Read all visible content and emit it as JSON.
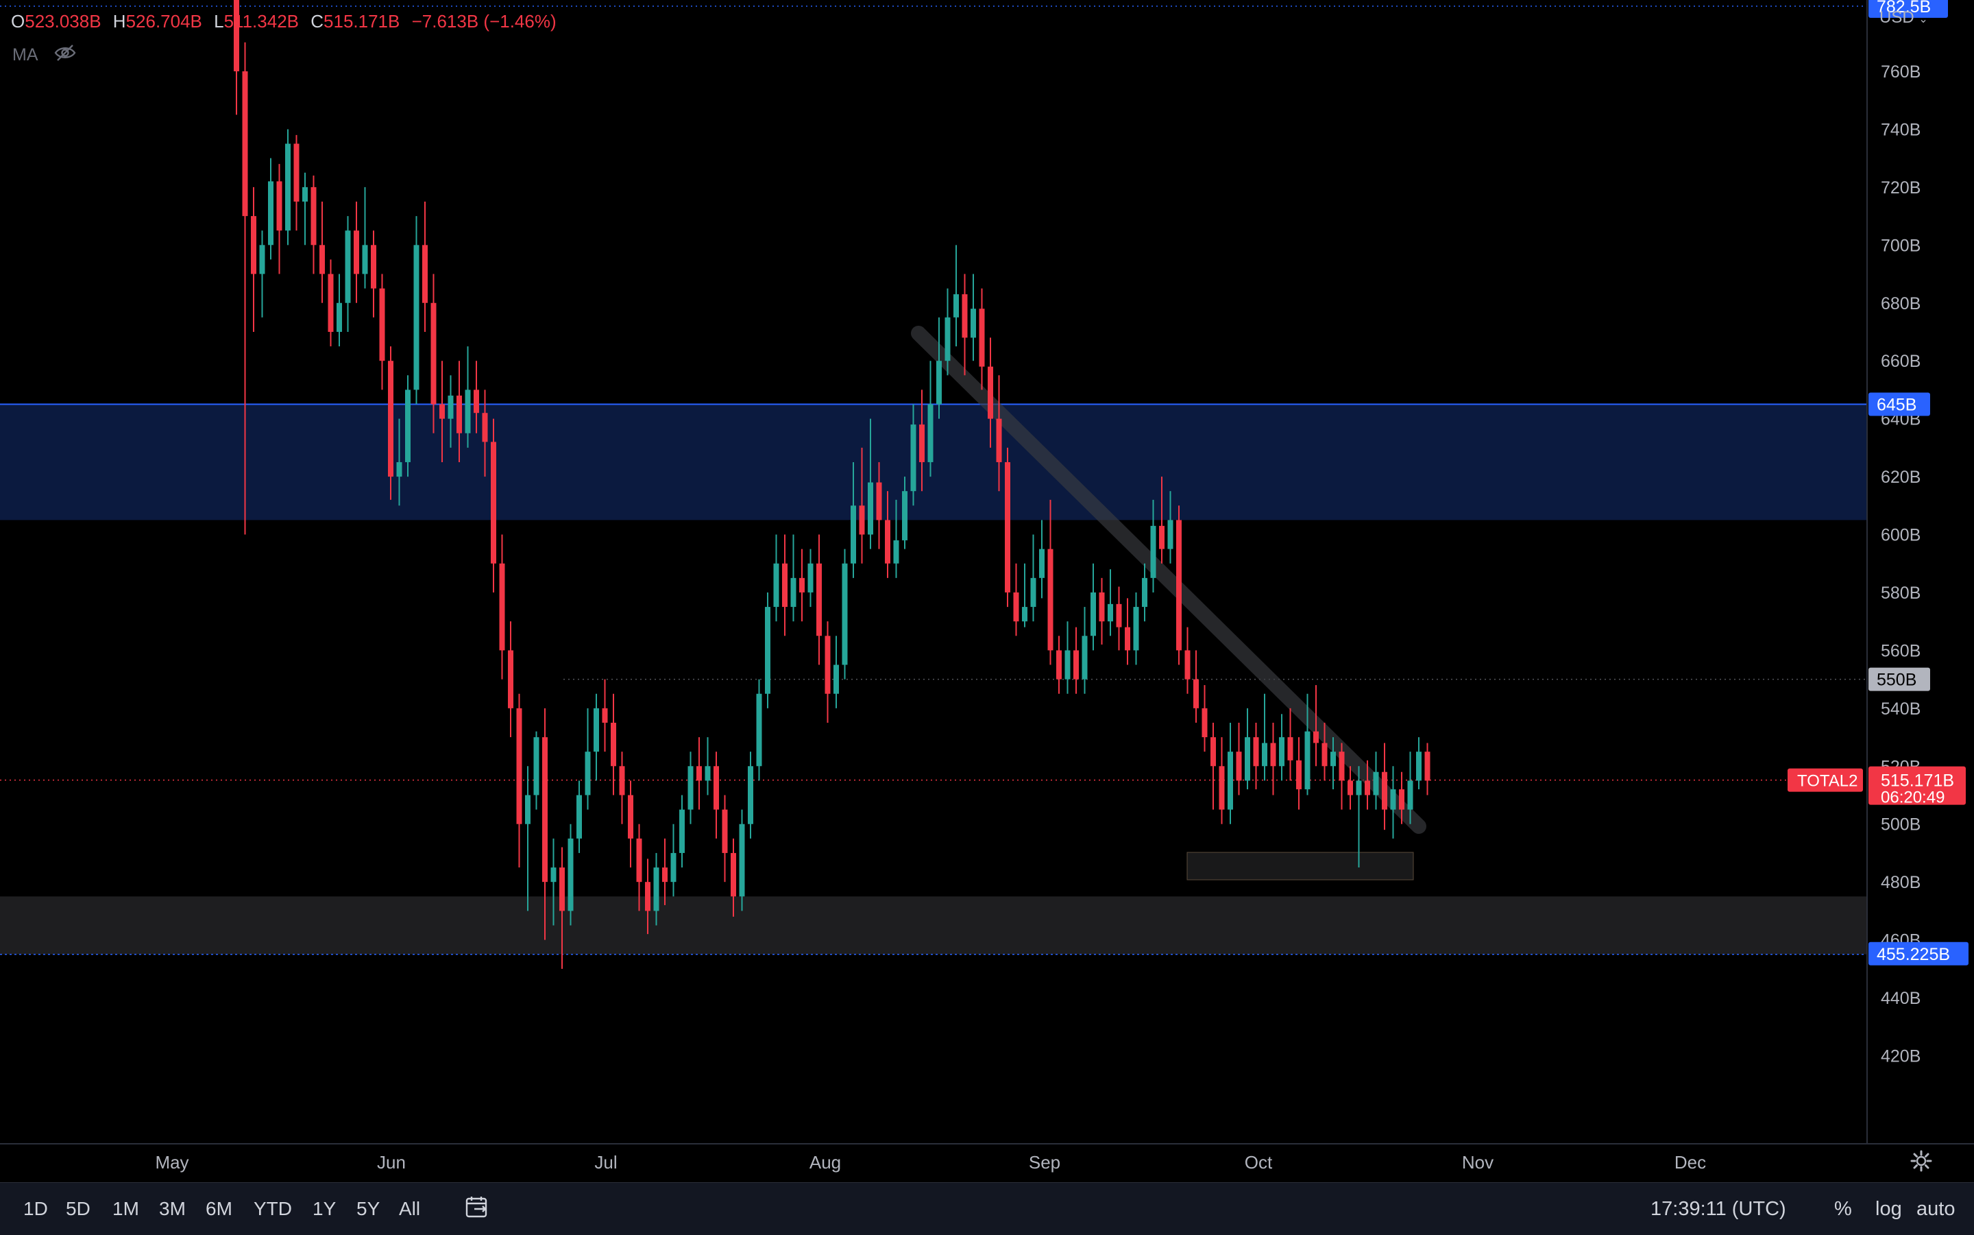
{
  "legend": {
    "o_label": "O",
    "open": "523.038B",
    "h_label": "H",
    "high": "526.704B",
    "l_label": "L",
    "low": "511.342B",
    "c_label": "C",
    "close": "515.171B",
    "change": "−7.613B (−1.46%)",
    "ma_label": "MA",
    "ma_icon": "eye-off-icon"
  },
  "currency": "USD",
  "symbol": "TOTAL2",
  "countdown": "06:20:49",
  "colors": {
    "up": "#26a69a",
    "down": "#f23645",
    "accent_blue": "#2962ff",
    "zone_blue": "#0b1a3f",
    "zone_gray": "#1e1e20",
    "bottom_bar": "#131722"
  },
  "price_axis": {
    "ticks": [
      "760B",
      "740B",
      "720B",
      "700B",
      "680B",
      "660B",
      "640B",
      "620B",
      "600B",
      "580B",
      "560B",
      "540B",
      "520B",
      "500B",
      "480B",
      "460B",
      "440B",
      "420B"
    ]
  },
  "price_tags": {
    "top_level": "782.5B",
    "zone_top": "645B",
    "mid_level": "550B",
    "bottom_level": "455.225B",
    "last_price": "515.171B"
  },
  "time_axis": {
    "labels": [
      "May",
      "Jun",
      "Jul",
      "Aug",
      "Sep",
      "Oct",
      "Nov",
      "Dec"
    ]
  },
  "chart_data": {
    "type": "candlestick",
    "y_unit": "B",
    "ylim": [
      410,
      790
    ],
    "x_range": [
      "Apr 28",
      "Dec 31"
    ],
    "series": [
      {
        "name": "TOTAL2",
        "ohlc": [
          [
            805,
            760,
            810,
            745
          ],
          [
            760,
            710,
            770,
            600
          ],
          [
            710,
            690,
            720,
            670
          ],
          [
            690,
            700,
            705,
            675
          ],
          [
            700,
            722,
            730,
            695
          ],
          [
            722,
            705,
            728,
            690
          ],
          [
            705,
            735,
            740,
            700
          ],
          [
            735,
            715,
            738,
            705
          ],
          [
            715,
            720,
            725,
            700
          ],
          [
            720,
            700,
            724,
            690
          ],
          [
            700,
            690,
            715,
            680
          ],
          [
            690,
            670,
            695,
            665
          ],
          [
            670,
            680,
            690,
            665
          ],
          [
            680,
            705,
            710,
            670
          ],
          [
            705,
            690,
            715,
            680
          ],
          [
            690,
            700,
            720,
            685
          ],
          [
            700,
            685,
            705,
            675
          ],
          [
            685,
            660,
            690,
            650
          ],
          [
            660,
            620,
            665,
            612
          ],
          [
            620,
            625,
            640,
            610
          ],
          [
            625,
            650,
            655,
            620
          ],
          [
            650,
            700,
            710,
            645
          ],
          [
            700,
            680,
            715,
            670
          ],
          [
            680,
            645,
            690,
            635
          ],
          [
            645,
            640,
            660,
            625
          ],
          [
            640,
            648,
            655,
            630
          ],
          [
            648,
            635,
            660,
            625
          ],
          [
            635,
            650,
            665,
            630
          ],
          [
            650,
            642,
            660,
            635
          ],
          [
            642,
            632,
            650,
            620
          ],
          [
            632,
            590,
            640,
            580
          ],
          [
            590,
            560,
            600,
            550
          ],
          [
            560,
            540,
            570,
            530
          ],
          [
            540,
            500,
            545,
            485
          ],
          [
            500,
            510,
            520,
            470
          ],
          [
            510,
            530,
            532,
            505
          ],
          [
            530,
            480,
            540,
            460
          ],
          [
            480,
            485,
            495,
            465
          ],
          [
            485,
            470,
            492,
            450
          ],
          [
            470,
            495,
            500,
            465
          ],
          [
            495,
            510,
            515,
            490
          ],
          [
            510,
            525,
            540,
            505
          ],
          [
            525,
            540,
            545,
            515
          ],
          [
            540,
            535,
            550,
            525
          ],
          [
            535,
            520,
            545,
            510
          ],
          [
            520,
            510,
            525,
            500
          ],
          [
            510,
            495,
            515,
            485
          ],
          [
            495,
            480,
            500,
            470
          ],
          [
            480,
            470,
            488,
            462
          ],
          [
            470,
            485,
            490,
            465
          ],
          [
            485,
            480,
            495,
            472
          ],
          [
            480,
            490,
            500,
            475
          ],
          [
            490,
            505,
            510,
            485
          ],
          [
            505,
            520,
            525,
            500
          ],
          [
            520,
            515,
            530,
            505
          ],
          [
            515,
            520,
            530,
            510
          ],
          [
            520,
            505,
            525,
            495
          ],
          [
            505,
            490,
            510,
            480
          ],
          [
            490,
            475,
            495,
            468
          ],
          [
            475,
            500,
            505,
            470
          ],
          [
            500,
            520,
            525,
            495
          ],
          [
            520,
            545,
            550,
            515
          ],
          [
            545,
            575,
            580,
            540
          ],
          [
            575,
            590,
            600,
            570
          ],
          [
            590,
            575,
            600,
            565
          ],
          [
            575,
            585,
            600,
            570
          ],
          [
            585,
            580,
            595,
            570
          ],
          [
            580,
            590,
            595,
            575
          ],
          [
            590,
            565,
            600,
            555
          ],
          [
            565,
            545,
            570,
            535
          ],
          [
            545,
            555,
            565,
            540
          ],
          [
            555,
            590,
            595,
            550
          ],
          [
            590,
            610,
            625,
            585
          ],
          [
            610,
            600,
            630,
            590
          ],
          [
            600,
            618,
            640,
            595
          ],
          [
            618,
            605,
            625,
            595
          ],
          [
            605,
            590,
            615,
            585
          ],
          [
            590,
            598,
            612,
            585
          ],
          [
            598,
            615,
            620,
            595
          ],
          [
            615,
            638,
            645,
            610
          ],
          [
            638,
            625,
            650,
            615
          ],
          [
            625,
            645,
            660,
            620
          ],
          [
            645,
            660,
            675,
            640
          ],
          [
            660,
            675,
            685,
            655
          ],
          [
            675,
            683,
            700,
            665
          ],
          [
            683,
            668,
            690,
            655
          ],
          [
            668,
            678,
            690,
            660
          ],
          [
            678,
            658,
            685,
            650
          ],
          [
            658,
            640,
            668,
            630
          ],
          [
            640,
            625,
            655,
            615
          ],
          [
            625,
            580,
            630,
            575
          ],
          [
            580,
            570,
            590,
            565
          ],
          [
            570,
            575,
            590,
            568
          ],
          [
            575,
            585,
            600,
            570
          ],
          [
            585,
            595,
            605,
            578
          ],
          [
            595,
            560,
            612,
            555
          ],
          [
            560,
            550,
            565,
            545
          ],
          [
            550,
            560,
            570,
            545
          ],
          [
            560,
            550,
            568,
            545
          ],
          [
            550,
            565,
            575,
            545
          ],
          [
            565,
            580,
            590,
            560
          ],
          [
            580,
            570,
            585,
            562
          ],
          [
            570,
            576,
            588,
            565
          ],
          [
            576,
            568,
            582,
            560
          ],
          [
            568,
            560,
            578,
            555
          ],
          [
            560,
            575,
            580,
            555
          ],
          [
            575,
            585,
            590,
            570
          ],
          [
            585,
            603,
            612,
            580
          ],
          [
            603,
            595,
            620,
            590
          ],
          [
            595,
            605,
            615,
            590
          ],
          [
            605,
            560,
            610,
            555
          ],
          [
            560,
            550,
            568,
            545
          ],
          [
            550,
            540,
            560,
            535
          ],
          [
            540,
            530,
            548,
            525
          ],
          [
            530,
            520,
            535,
            505
          ],
          [
            520,
            505,
            530,
            500
          ],
          [
            505,
            525,
            535,
            500
          ],
          [
            525,
            515,
            535,
            510
          ],
          [
            515,
            530,
            540,
            512
          ],
          [
            530,
            520,
            535,
            512
          ],
          [
            520,
            528,
            545,
            515
          ],
          [
            528,
            520,
            535,
            510
          ],
          [
            520,
            530,
            538,
            515
          ],
          [
            530,
            522,
            540,
            515
          ],
          [
            522,
            512,
            530,
            505
          ],
          [
            512,
            532,
            545,
            510
          ],
          [
            532,
            528,
            548,
            520
          ],
          [
            528,
            520,
            535,
            515
          ],
          [
            520,
            525,
            530,
            512
          ],
          [
            525,
            515,
            528,
            505
          ],
          [
            515,
            510,
            520,
            505
          ],
          [
            510,
            515,
            520,
            485
          ],
          [
            515,
            510,
            522,
            505
          ],
          [
            510,
            518,
            525,
            505
          ],
          [
            518,
            505,
            528,
            498
          ],
          [
            505,
            512,
            520,
            495
          ],
          [
            512,
            505,
            518,
            500
          ],
          [
            505,
            515,
            525,
            500
          ],
          [
            515,
            525,
            530,
            512
          ],
          [
            525,
            515,
            528,
            510
          ]
        ]
      }
    ],
    "zones": [
      {
        "from": 605,
        "to": 645,
        "color": "blue"
      },
      {
        "from": 455,
        "to": 475,
        "color": "gray"
      }
    ],
    "levels": [
      {
        "value": 782.5,
        "style": "dotted-blue"
      },
      {
        "value": 550,
        "style": "dotted-gray"
      },
      {
        "value": 515.171,
        "style": "dotted-red"
      }
    ]
  },
  "bottom_bar": {
    "timeframes": [
      "1D",
      "5D",
      "1M",
      "3M",
      "6M",
      "YTD",
      "1Y",
      "5Y",
      "All"
    ],
    "clock": "17:39:11 (UTC)",
    "percent": "%",
    "log": "log",
    "auto": "auto"
  }
}
